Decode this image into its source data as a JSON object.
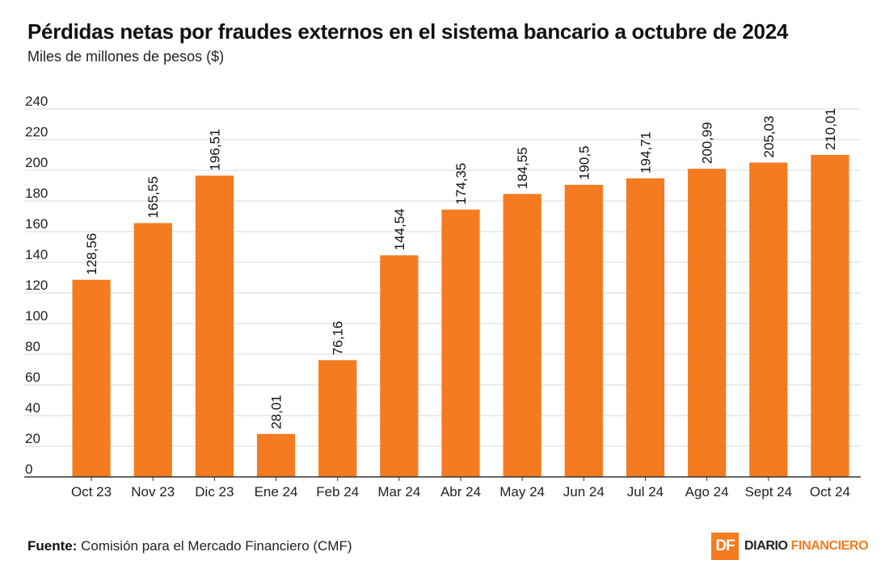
{
  "title": "Pérdidas netas por fraudes externos en el sistema bancario a octubre de 2024",
  "subtitle": "Miles de millones de pesos ($)",
  "source": {
    "label": "Fuente:",
    "text": "Comisión para el Mercado Financiero (CMF)"
  },
  "logo": {
    "mark": "DF",
    "name_part1": "DIARIO ",
    "name_part2": "FINANCIERO"
  },
  "colors": {
    "bar": "#f47b20",
    "grid": "#d9d9d9",
    "axis": "#333333",
    "brand": "#f47b20"
  },
  "chart_data": {
    "type": "bar",
    "categories": [
      "Oct 23",
      "Nov 23",
      "Dic 23",
      "Ene 24",
      "Feb 24",
      "Mar 24",
      "Abr 24",
      "May 24",
      "Jun 24",
      "Jul 24",
      "Ago 24",
      "Sept 24",
      "Oct 24"
    ],
    "values": [
      128.56,
      165.55,
      196.51,
      28.01,
      76.16,
      144.54,
      174.35,
      184.55,
      190.5,
      194.71,
      200.99,
      205.03,
      210.01
    ],
    "value_labels": [
      "128,56",
      "165,55",
      "196,51",
      "28,01",
      "76,16",
      "144,54",
      "174,35",
      "184,55",
      "190,5",
      "194,71",
      "200,99",
      "205,03",
      "210,01"
    ],
    "yticks": [
      0,
      20,
      40,
      60,
      80,
      100,
      120,
      140,
      160,
      180,
      200,
      220,
      240
    ],
    "ylim": [
      0,
      240
    ],
    "grid": true,
    "legend": "none"
  }
}
